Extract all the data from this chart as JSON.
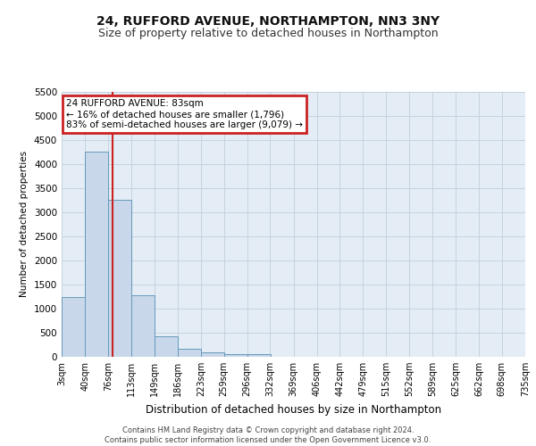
{
  "title": "24, RUFFORD AVENUE, NORTHAMPTON, NN3 3NY",
  "subtitle": "Size of property relative to detached houses in Northampton",
  "xlabel": "Distribution of detached houses by size in Northampton",
  "ylabel": "Number of detached properties",
  "footer_line1": "Contains HM Land Registry data © Crown copyright and database right 2024.",
  "footer_line2": "Contains public sector information licensed under the Open Government Licence v3.0.",
  "bin_labels": [
    "3sqm",
    "40sqm",
    "76sqm",
    "113sqm",
    "149sqm",
    "186sqm",
    "223sqm",
    "259sqm",
    "296sqm",
    "332sqm",
    "369sqm",
    "406sqm",
    "442sqm",
    "479sqm",
    "515sqm",
    "552sqm",
    "589sqm",
    "625sqm",
    "662sqm",
    "698sqm",
    "735sqm"
  ],
  "bar_values": [
    1230,
    4250,
    3250,
    1280,
    430,
    160,
    90,
    60,
    50,
    0,
    0,
    0,
    0,
    0,
    0,
    0,
    0,
    0,
    0,
    0
  ],
  "bar_color": "#c8d8ea",
  "bar_edge_color": "#6699bb",
  "bg_color": "#e4edf5",
  "grid_color": "#c5d3de",
  "vline_color": "#cc2222",
  "ylim_max": 5500,
  "yticks": [
    0,
    500,
    1000,
    1500,
    2000,
    2500,
    3000,
    3500,
    4000,
    4500,
    5000,
    5500
  ],
  "annotation_line1": "24 RUFFORD AVENUE: 83sqm",
  "annotation_line2": "← 16% of detached houses are smaller (1,796)",
  "annotation_line3": "83% of semi-detached houses are larger (9,079) →",
  "annotation_box_color": "#cc2222",
  "title_fontsize": 10,
  "subtitle_fontsize": 9,
  "bin_starts": [
    3,
    40,
    76,
    113,
    149,
    186,
    223,
    259,
    296,
    332,
    369,
    406,
    442,
    479,
    515,
    552,
    589,
    625,
    662,
    698
  ],
  "bin_width": 37,
  "vline_x": 83,
  "xlim_min": 3,
  "xlim_max": 735
}
